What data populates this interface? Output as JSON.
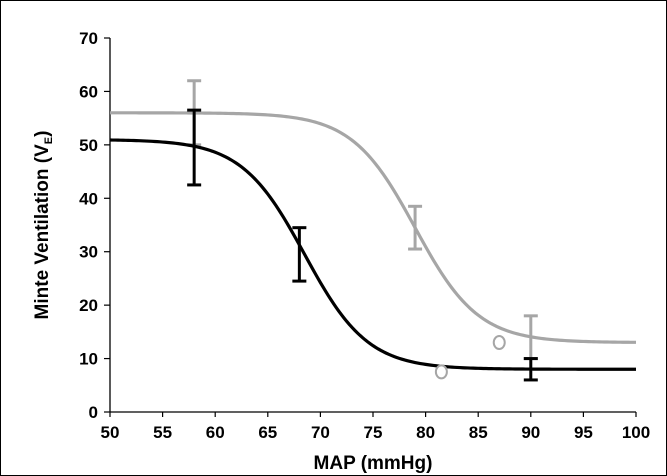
{
  "chart_data": {
    "type": "line",
    "xlabel": "MAP (mmHg)",
    "ylabel": {
      "main": "Minte Ventilation (V",
      "sub": "E",
      "close": ")"
    },
    "xlim": [
      50,
      100
    ],
    "ylim": [
      0,
      70
    ],
    "xticks": [
      50,
      55,
      60,
      65,
      70,
      75,
      80,
      85,
      90,
      95,
      100
    ],
    "yticks": [
      0,
      10,
      20,
      30,
      40,
      50,
      60,
      70
    ],
    "grid": false,
    "legend": "none",
    "series": [
      {
        "color": "#000000",
        "curve": {
          "bottom": 8,
          "top": 51,
          "x50": 68.5,
          "slope": 3.0
        },
        "points": [
          {
            "x": 58,
            "y": 50,
            "err_low": 42.5,
            "err_high": 56.5
          },
          {
            "x": 68,
            "y": 29.5,
            "err_low": 24.5,
            "err_high": 34.5
          },
          {
            "x": 90,
            "y": 8,
            "err_low": 6,
            "err_high": 10
          }
        ],
        "open_points": [
          {
            "x": 81.5,
            "y": 7.5
          }
        ]
      },
      {
        "color": "#a6a6a6",
        "curve": {
          "bottom": 13,
          "top": 56,
          "x50": 79,
          "slope": 3.0
        },
        "points": [
          {
            "x": 58,
            "y": 56,
            "err_low": 50,
            "err_high": 62
          },
          {
            "x": 79,
            "y": 34.5,
            "err_low": 30.5,
            "err_high": 38.5
          },
          {
            "x": 90,
            "y": 14,
            "err_low": 10,
            "err_high": 18
          }
        ],
        "open_points": [
          {
            "x": 87,
            "y": 13
          }
        ]
      }
    ]
  }
}
